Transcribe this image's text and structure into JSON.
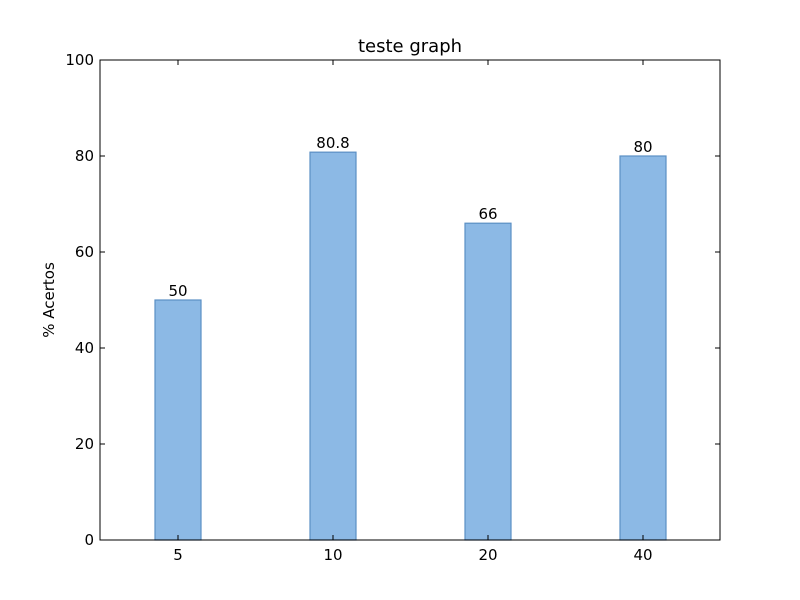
{
  "chart_data": {
    "type": "bar",
    "title": "teste graph",
    "xlabel": "",
    "ylabel": "% Acertos",
    "categories": [
      "5",
      "10",
      "20",
      "40"
    ],
    "values": [
      50,
      80.8,
      66,
      80
    ],
    "value_labels": [
      "50",
      "80.8",
      "66",
      "80"
    ],
    "ylim": [
      0,
      100
    ],
    "yticks": [
      "0",
      "20",
      "40",
      "60",
      "80",
      "100"
    ],
    "grid": false,
    "colors": {
      "bar_fill": "#8cb9e5",
      "bar_edge": "#5b8fc4",
      "axis": "#000000"
    }
  }
}
